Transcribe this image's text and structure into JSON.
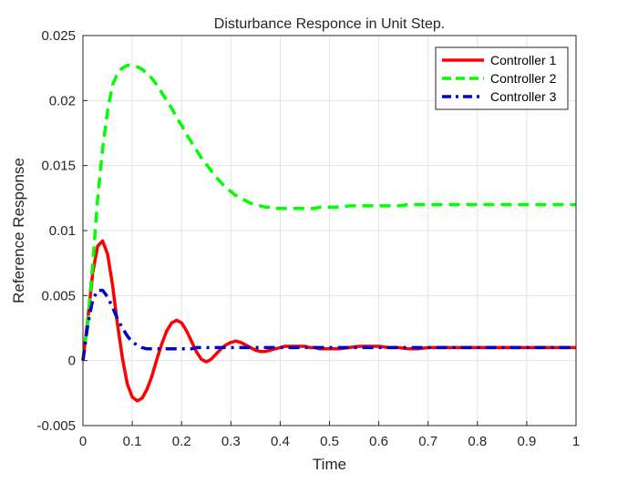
{
  "chart_data": {
    "type": "line",
    "title": "Disturbance Responce in Unit Step.",
    "xlabel": "Time",
    "ylabel": "Reference Response",
    "xlim": [
      0,
      1
    ],
    "ylim": [
      -0.005,
      0.025
    ],
    "grid": true,
    "legend_position": "top-right",
    "xticks": [
      "0",
      "0.1",
      "0.2",
      "0.3",
      "0.4",
      "0.5",
      "0.6",
      "0.7",
      "0.8",
      "0.9",
      "1"
    ],
    "yticks": [
      "-0.005",
      "0",
      "0.005",
      "0.01",
      "0.015",
      "0.02",
      "0.025"
    ],
    "x": [
      0,
      0.01,
      0.02,
      0.03,
      0.04,
      0.05,
      0.06,
      0.07,
      0.08,
      0.09,
      0.1,
      0.11,
      0.12,
      0.13,
      0.14,
      0.15,
      0.16,
      0.17,
      0.18,
      0.19,
      0.2,
      0.21,
      0.22,
      0.23,
      0.24,
      0.25,
      0.26,
      0.27,
      0.28,
      0.29,
      0.3,
      0.31,
      0.32,
      0.33,
      0.34,
      0.35,
      0.36,
      0.37,
      0.38,
      0.39,
      0.4,
      0.41,
      0.42,
      0.43,
      0.44,
      0.45,
      0.46,
      0.47,
      0.48,
      0.49,
      0.5,
      0.52,
      0.54,
      0.56,
      0.58,
      0.6,
      0.62,
      0.64,
      0.66,
      0.68,
      0.7,
      0.72,
      0.74,
      0.76,
      0.78,
      0.8,
      0.85,
      0.9,
      0.95,
      1.0
    ],
    "series": [
      {
        "name": "Controller 1",
        "color": "#ff0000",
        "dash": "solid",
        "values": [
          0,
          0.0032,
          0.0068,
          0.0088,
          0.0092,
          0.0082,
          0.0058,
          0.0028,
          0.0002,
          -0.0018,
          -0.0028,
          -0.0031,
          -0.0029,
          -0.0022,
          -0.0012,
          0.0001,
          0.0013,
          0.0023,
          0.0029,
          0.0031,
          0.0029,
          0.0023,
          0.0015,
          0.0007,
          0.0001,
          -0.0001,
          0.0001,
          0.0005,
          0.0009,
          0.0012,
          0.0014,
          0.0015,
          0.0014,
          0.0012,
          0.001,
          0.0008,
          0.0007,
          0.0007,
          0.0008,
          0.0009,
          0.001,
          0.0011,
          0.0011,
          0.0011,
          0.0011,
          0.0011,
          0.001,
          0.001,
          0.0009,
          0.0009,
          0.0009,
          0.0009,
          0.001,
          0.0011,
          0.0011,
          0.0011,
          0.001,
          0.001,
          0.0009,
          0.0009,
          0.001,
          0.001,
          0.001,
          0.001,
          0.001,
          0.001,
          0.001,
          0.001,
          0.001,
          0.001
        ]
      },
      {
        "name": "Controller 2",
        "color": "#00ff00",
        "dash": "dashed",
        "values": [
          0,
          0.003,
          0.0075,
          0.0125,
          0.0163,
          0.0192,
          0.0212,
          0.0221,
          0.0225,
          0.0227,
          0.0227,
          0.0226,
          0.0224,
          0.0221,
          0.0217,
          0.0212,
          0.0206,
          0.02,
          0.0194,
          0.0187,
          0.0181,
          0.0174,
          0.0168,
          0.0162,
          0.0156,
          0.0151,
          0.0146,
          0.0141,
          0.0137,
          0.0133,
          0.013,
          0.0127,
          0.0125,
          0.0123,
          0.0121,
          0.012,
          0.0119,
          0.0118,
          0.0118,
          0.0117,
          0.0117,
          0.0117,
          0.0117,
          0.0117,
          0.0117,
          0.0117,
          0.0117,
          0.0117,
          0.0118,
          0.0118,
          0.0118,
          0.0118,
          0.0119,
          0.0119,
          0.0119,
          0.0119,
          0.0119,
          0.0119,
          0.012,
          0.012,
          0.012,
          0.012,
          0.012,
          0.012,
          0.012,
          0.012,
          0.012,
          0.012,
          0.012,
          0.012
        ]
      },
      {
        "name": "Controller 3",
        "color": "#0000cc",
        "dash": "dash-dot",
        "values": [
          0,
          0.0028,
          0.0047,
          0.0054,
          0.0054,
          0.0049,
          0.0041,
          0.0032,
          0.0025,
          0.0019,
          0.0014,
          0.0012,
          0.001,
          0.0009,
          0.0009,
          0.0009,
          0.0009,
          0.0009,
          0.0009,
          0.0009,
          0.0009,
          0.0009,
          0.0009,
          0.001,
          0.001,
          0.001,
          0.001,
          0.001,
          0.001,
          0.001,
          0.001,
          0.001,
          0.001,
          0.001,
          0.001,
          0.001,
          0.001,
          0.001,
          0.001,
          0.001,
          0.001,
          0.001,
          0.001,
          0.001,
          0.001,
          0.001,
          0.001,
          0.001,
          0.001,
          0.001,
          0.001,
          0.001,
          0.001,
          0.001,
          0.001,
          0.001,
          0.001,
          0.001,
          0.001,
          0.001,
          0.001,
          0.001,
          0.001,
          0.001,
          0.001,
          0.001,
          0.001,
          0.001,
          0.001,
          0.001
        ]
      }
    ]
  }
}
